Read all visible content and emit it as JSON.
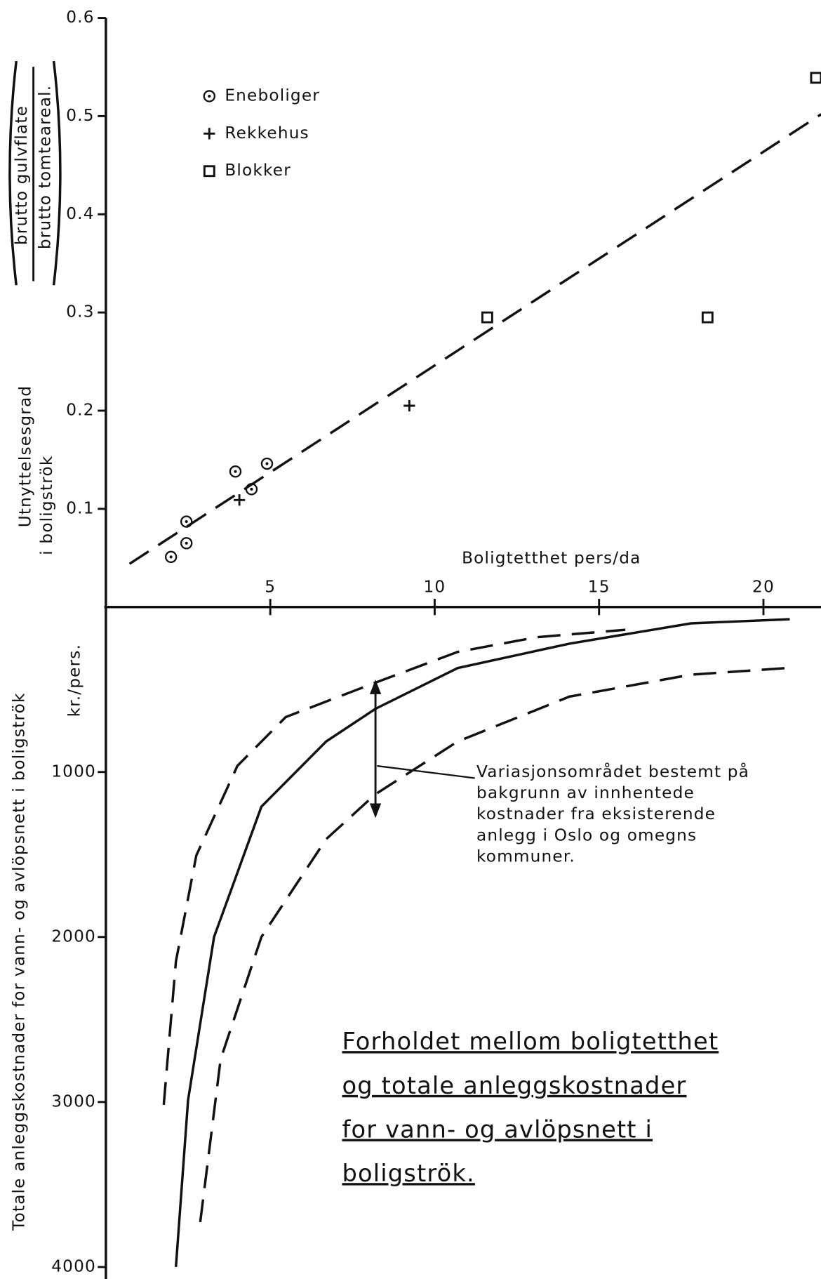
{
  "chart_data": [
    {
      "type": "scatter",
      "xlabel": "Boligtetthet pers/da",
      "ylabel": [
        "Utnyttelsesgrad",
        "i boligströk"
      ],
      "ylabel_fraction": [
        "brutto gulvflate",
        "brutto tomteareal."
      ],
      "xlim": [
        0,
        21.8
      ],
      "ylim": [
        0,
        0.6
      ],
      "xticks": [
        5,
        10,
        15,
        20
      ],
      "yticks": [
        0.1,
        0.2,
        0.3,
        0.4,
        0.5,
        0.6
      ],
      "grid": false,
      "legend": "upper left",
      "series": [
        {
          "name": "Eneboliger",
          "marker": "circled-dot",
          "color": "#111111",
          "x": [
            1.98,
            2.45,
            2.45,
            3.94,
            4.43,
            4.9
          ],
          "values": [
            0.051,
            0.065,
            0.087,
            0.138,
            0.12,
            0.146
          ]
        },
        {
          "name": "Rekkehus",
          "marker": "plus",
          "color": "#111111",
          "x": [
            4.06,
            9.23
          ],
          "values": [
            0.109,
            0.205
          ]
        },
        {
          "name": "Blokker",
          "marker": "square",
          "color": "#111111",
          "x": [
            11.6,
            18.3,
            21.6
          ],
          "values": [
            0.295,
            0.295,
            0.539
          ]
        }
      ],
      "trendline": {
        "x": [
          0.72,
          21.76
        ],
        "values": [
          0.044,
          0.502
        ],
        "style": "dashed",
        "color": "#111111"
      }
    },
    {
      "type": "line",
      "ylabel": "Totale anleggskostnader for vann- og avlöpsnett i boligströk",
      "yunit": "kr./pers.",
      "xlim": [
        0,
        21.8
      ],
      "ylim": [
        0,
        4000
      ],
      "y_inverted": true,
      "yticks": [
        1000,
        2000,
        3000,
        4000
      ],
      "grid": false,
      "series": [
        {
          "style": "solid",
          "color": "#111111",
          "x": [
            2.13,
            2.5,
            3.29,
            4.73,
            6.7,
            8.2,
            10.7,
            14.1,
            17.8,
            20.8
          ],
          "values": [
            4000,
            2988,
            2000,
            1210,
            815,
            617,
            370,
            222,
            99,
            74
          ]
        },
        {
          "style": "dashed",
          "color": "#111111",
          "x": [
            1.76,
            2.13,
            2.75,
            4.0,
            5.47,
            8.19,
            10.7,
            13.1,
            15.8
          ],
          "values": [
            3017,
            2148,
            1506,
            963,
            667,
            459,
            272,
            183,
            138
          ]
        },
        {
          "style": "dashed",
          "color": "#111111",
          "x": [
            2.87,
            3.49,
            4.73,
            6.7,
            8.19,
            10.7,
            14.1,
            17.8,
            20.7
          ],
          "values": [
            3728,
            2741,
            2000,
            1407,
            1136,
            815,
            543,
            410,
            370
          ]
        }
      ],
      "annotation": [
        "Variasjonsområdet  bestemt  på",
        "bakgrunn  av  innhentede",
        "kostnader  fra  eksisterende",
        "anlegg  i  Oslo  og  omegns",
        "kommuner."
      ],
      "title": [
        "Forholdet   mellom  boligtetthet",
        "og   totale   anleggskostnader",
        "for   vann- og  avlöpsnett  i",
        "boligströk."
      ]
    }
  ]
}
